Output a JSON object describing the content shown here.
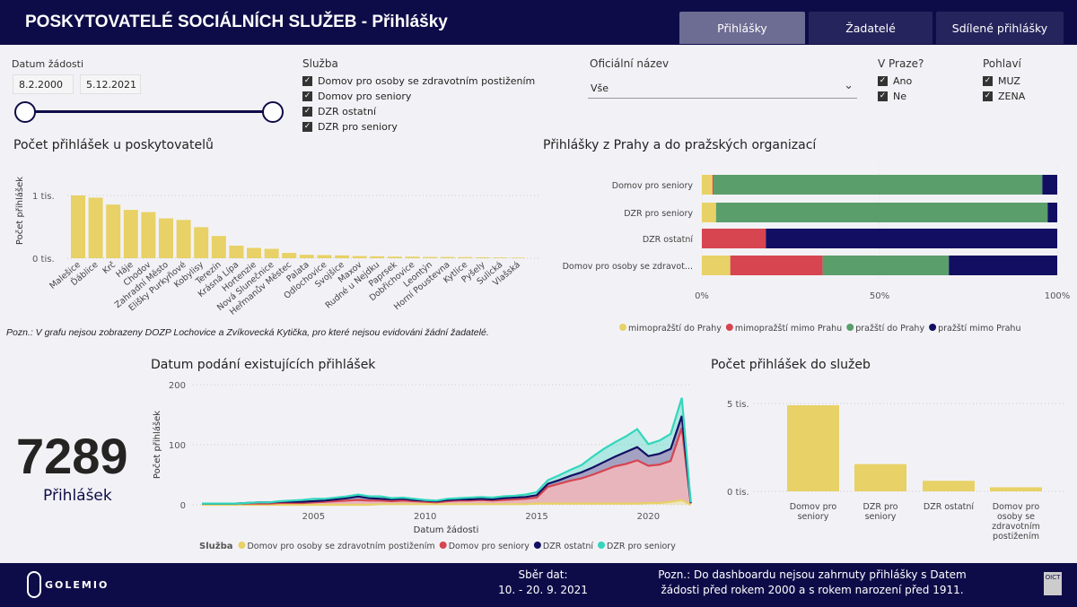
{
  "header": {
    "title": "POSKYTOVATELÉ SOCIÁLNÍCH SLUŽEB - Přihlášky",
    "tabs": [
      "Přihlášky",
      "Žadatelé",
      "Sdílené přihlášky"
    ],
    "active_tab": 0
  },
  "filters": {
    "date": {
      "label": "Datum žádosti",
      "from": "8.2.2000",
      "to": "5.12.2021"
    },
    "service": {
      "label": "Služba",
      "items": [
        "Domov pro osoby se zdravotním postižením",
        "Domov pro seniory",
        "DZR ostatní",
        "DZR pro seniory"
      ]
    },
    "official_name": {
      "label": "Oficiální název",
      "value": "Vše"
    },
    "prague": {
      "label": "V Praze?",
      "items": [
        "Ano",
        "Ne"
      ]
    },
    "gender": {
      "label": "Pohlaví",
      "items": [
        "MUZ",
        "ZENA"
      ]
    }
  },
  "kpi": {
    "value": "7289",
    "label": "Přihlášek"
  },
  "note_chart": "Pozn.: V grafu nejsou zobrazeny DOZP Lochovice a Zvíkovecká Kytička, pro které nejsou evidováni žádní žadatelé.",
  "footer": {
    "logo": "GOLEMIO",
    "collect_label": "Sběr dat:",
    "collect_value": "10. - 20. 9. 2021",
    "note_line1": "Pozn.: Do dashboardu nejsou zahrnuty přihlášky s Datem",
    "note_line2": "žádosti před rokem 2000 a s rokem narození před 1911.",
    "oict_logo": "OICT"
  },
  "chart_data": [
    {
      "type": "bar",
      "title": "Počet přihlášek u poskytovatelů",
      "ylabel": "Počet přihlášek",
      "yticks": [
        "0 tis.",
        "1 tis."
      ],
      "ylim": [
        0,
        1000
      ],
      "color": "#e8d166",
      "categories": [
        "Malešice",
        "Ďáblice",
        "Krč",
        "Háje",
        "Chodov",
        "Zahradní Město",
        "Elišky Purkyňové",
        "Kobylisy",
        "Terezín",
        "Krásná Lípa",
        "Hortenzie",
        "Nová Slunečnice",
        "Heřmanův Městec",
        "Palata",
        "Odlochovice",
        "Svojšice",
        "Maxov",
        "Rudné u Nejdku",
        "Paprsek",
        "Dobřichovice",
        "Leontýn",
        "Horní Poustevna",
        "Kytlice",
        "Pyšely",
        "Sulická",
        "Vlašská"
      ],
      "values": [
        1000,
        965,
        855,
        770,
        735,
        635,
        610,
        495,
        355,
        200,
        165,
        150,
        85,
        55,
        50,
        45,
        35,
        30,
        25,
        25,
        20,
        20,
        18,
        15,
        12,
        10
      ]
    },
    {
      "type": "bar",
      "orientation": "horizontal",
      "stacked": "100%",
      "title": "Přihlášky z Prahy a do pražských organizací",
      "categories": [
        "Domov pro seniory",
        "DZR pro seniory",
        "DZR ostatní",
        "Domov pro osoby se zdravot..."
      ],
      "xticks": [
        "0%",
        "50%",
        "100%"
      ],
      "series": [
        {
          "name": "mimopražští do Prahy",
          "color": "#e8d166",
          "values": [
            3,
            4,
            0,
            8
          ]
        },
        {
          "name": "mimopražští mimo Prahu",
          "color": "#d64550",
          "values": [
            0.3,
            0,
            18,
            26
          ]
        },
        {
          "name": "pražští do Prahy",
          "color": "#5a9e6b",
          "values": [
            92.5,
            93.3,
            0,
            35.5
          ]
        },
        {
          "name": "pražští mimo Prahu",
          "color": "#120f63",
          "values": [
            4.2,
            2.7,
            82,
            30.5
          ]
        }
      ]
    },
    {
      "type": "area",
      "stacked": true,
      "title": "Datum podání existujících přihlášek",
      "xlabel": "Datum žádosti",
      "ylabel": "Počet přihlášek",
      "ylim": [
        0,
        200
      ],
      "yticks": [
        "0",
        "100",
        "200"
      ],
      "xticks": [
        "2005",
        "2010",
        "2015",
        "2020"
      ],
      "legend_title": "Služba",
      "x_start": 2000,
      "x_step": 0.5,
      "series": [
        {
          "name": "Domov pro osoby se zdravotním postižením",
          "color": "#e8d166",
          "values": [
            0,
            0,
            0,
            0,
            0,
            0,
            0,
            0,
            0,
            0,
            0,
            0,
            0,
            0,
            0,
            0,
            1,
            1,
            1,
            1,
            1,
            1,
            1,
            1,
            1,
            1,
            1,
            1,
            1,
            1,
            2,
            2,
            2,
            2,
            2,
            2,
            2,
            2,
            2,
            2,
            3,
            3,
            5,
            8,
            0
          ]
        },
        {
          "name": "Domov pro seniory",
          "color": "#d64550",
          "values": [
            2,
            2,
            2,
            2,
            2,
            2,
            2,
            3,
            3,
            3,
            4,
            5,
            6,
            7,
            8,
            7,
            6,
            5,
            6,
            5,
            4,
            3,
            5,
            6,
            6,
            7,
            6,
            7,
            8,
            9,
            10,
            28,
            33,
            38,
            42,
            48,
            55,
            62,
            66,
            72,
            62,
            64,
            68,
            120,
            2
          ]
        },
        {
          "name": "DZR ostatní",
          "color": "#120f63",
          "values": [
            0,
            0,
            0,
            0,
            1,
            2,
            2,
            2,
            2,
            2,
            2,
            2,
            3,
            4,
            6,
            4,
            3,
            3,
            3,
            2,
            2,
            2,
            2,
            2,
            2,
            2,
            2,
            3,
            3,
            3,
            4,
            5,
            6,
            8,
            10,
            12,
            14,
            16,
            20,
            22,
            16,
            18,
            20,
            20,
            1
          ]
        },
        {
          "name": "DZR pro seniory",
          "color": "#33d6bd",
          "values": [
            0,
            0,
            0,
            0,
            0,
            0,
            0,
            1,
            2,
            3,
            4,
            3,
            3,
            3,
            3,
            3,
            4,
            2,
            2,
            2,
            1,
            1,
            2,
            2,
            3,
            3,
            3,
            3,
            3,
            4,
            5,
            6,
            8,
            10,
            12,
            18,
            22,
            24,
            26,
            30,
            20,
            22,
            25,
            30,
            1
          ]
        }
      ]
    },
    {
      "type": "bar",
      "title": "Počet přihlášek do služeb",
      "yticks": [
        "0 tis.",
        "5 tis."
      ],
      "ylim": [
        0,
        5000
      ],
      "color": "#e8d166",
      "categories": [
        "Domov pro seniory",
        "DZR pro seniory",
        "DZR ostatní",
        "Domov pro osoby se zdravotním postižením"
      ],
      "values": [
        4900,
        1550,
        600,
        230
      ]
    }
  ]
}
